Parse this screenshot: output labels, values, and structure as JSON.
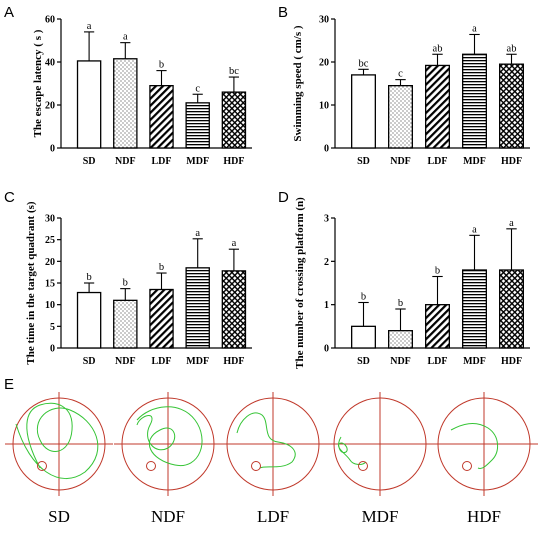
{
  "figure": {
    "panel_e_letter": "E"
  },
  "chart_data": [
    {
      "panel": "A",
      "type": "bar",
      "categories": [
        "SD",
        "NDF",
        "LDF",
        "MDF",
        "HDF"
      ],
      "values": [
        40.5,
        41.5,
        29.0,
        21.0,
        26.0
      ],
      "errors": [
        13.5,
        7.5,
        7.0,
        4.0,
        7.0
      ],
      "significance": [
        "a",
        "a",
        "b",
        "c",
        "bc"
      ],
      "ylabel": "The escape latency ( s )",
      "ylim": [
        0,
        60
      ],
      "yticks": [
        "0",
        "20",
        "40",
        "60"
      ],
      "patterns": [
        "none",
        "dots",
        "diag",
        "hlines",
        "cross"
      ]
    },
    {
      "panel": "B",
      "type": "bar",
      "categories": [
        "SD",
        "NDF",
        "LDF",
        "MDF",
        "HDF"
      ],
      "values": [
        17.0,
        14.5,
        19.2,
        21.8,
        19.5
      ],
      "errors": [
        1.3,
        1.4,
        2.6,
        4.6,
        2.3
      ],
      "significance": [
        "bc",
        "c",
        "ab",
        "a",
        "ab"
      ],
      "ylabel": "Swimming speed ( cm/s )",
      "ylim": [
        0,
        30
      ],
      "yticks": [
        "0",
        "10",
        "20",
        "30"
      ],
      "patterns": [
        "none",
        "dots",
        "diag",
        "hlines",
        "cross"
      ]
    },
    {
      "panel": "C",
      "type": "bar",
      "categories": [
        "SD",
        "NDF",
        "LDF",
        "MDF",
        "HDF"
      ],
      "values": [
        12.8,
        11.0,
        13.5,
        18.5,
        17.8
      ],
      "errors": [
        2.2,
        2.7,
        3.8,
        6.7,
        5.0
      ],
      "significance": [
        "b",
        "b",
        "b",
        "a",
        "a"
      ],
      "ylabel": "The time in the target quadrant (s)",
      "ylim": [
        0,
        30
      ],
      "yticks": [
        "0",
        "5",
        "10",
        "15",
        "20",
        "25",
        "30"
      ],
      "patterns": [
        "none",
        "dots",
        "diag",
        "hlines",
        "cross"
      ]
    },
    {
      "panel": "D",
      "type": "bar",
      "categories": [
        "SD",
        "NDF",
        "LDF",
        "MDF",
        "HDF"
      ],
      "values": [
        0.5,
        0.4,
        1.0,
        1.8,
        1.8
      ],
      "errors": [
        0.55,
        0.5,
        0.65,
        0.8,
        0.95
      ],
      "significance": [
        "b",
        "b",
        "b",
        "a",
        "a"
      ],
      "ylabel": "The number of crossing platform (n)",
      "ylim": [
        0,
        3
      ],
      "yticks": [
        "0",
        "1",
        "2",
        "3"
      ],
      "patterns": [
        "none",
        "dots",
        "diag",
        "hlines",
        "cross"
      ]
    }
  ],
  "tracks": {
    "labels": [
      "SD",
      "NDF",
      "LDF",
      "MDF",
      "HDF"
    ],
    "circle_color": "#c0392b",
    "path_color": "#35c435"
  }
}
